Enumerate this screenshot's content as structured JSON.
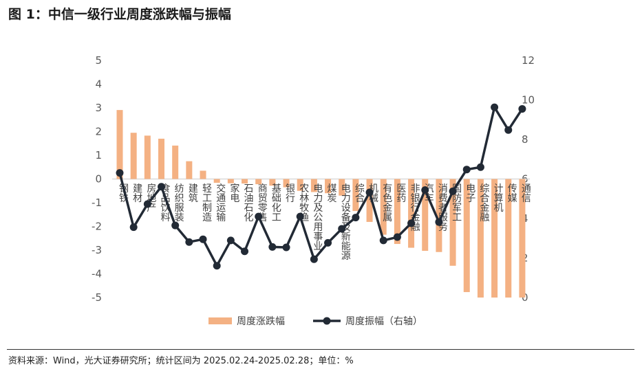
{
  "title": "图 1：中信一级行业周度涨跌幅与振幅",
  "source": "资料来源：Wind，光大证券研究所；统计区间为 2025.02.24-2025.02.28；单位：%",
  "chart_data": {
    "type": "bar+line",
    "categories": [
      "钢铁",
      "建材",
      "房地产",
      "食品饮料",
      "纺织服装",
      "建筑",
      "轻工制造",
      "交通运输",
      "家电",
      "石油石化",
      "商贸零售",
      "基础化工",
      "银行",
      "农林牧渔",
      "电力及公用事业",
      "煤炭",
      "电力设备及新能源",
      "综合",
      "机械",
      "有色金属",
      "医药",
      "非银行金融",
      "汽车",
      "消费者服务",
      "国防军工",
      "电子",
      "综合金融",
      "计算机",
      "传媒",
      "通信"
    ],
    "series": [
      {
        "name": "周度涨跌幅",
        "type": "bar",
        "axis": "left",
        "color": "#F4B183",
        "values": [
          2.91,
          1.95,
          1.83,
          1.7,
          1.41,
          0.75,
          0.35,
          -0.16,
          -0.18,
          -0.19,
          -0.22,
          -0.28,
          -0.35,
          -0.5,
          -0.55,
          -0.6,
          -0.7,
          -1.35,
          -1.81,
          -2.35,
          -2.74,
          -2.9,
          -3.03,
          -3.08,
          -3.66,
          -4.77,
          -5.0,
          -5.0,
          -5.0,
          -5.0
        ]
      },
      {
        "name": "周度振幅（右轴）",
        "type": "line",
        "axis": "right",
        "color": "#222A35",
        "values": [
          6.31,
          3.56,
          4.73,
          5.61,
          3.65,
          2.81,
          2.95,
          1.61,
          2.89,
          2.34,
          4.1,
          2.56,
          2.54,
          4.1,
          1.94,
          2.77,
          3.48,
          4.05,
          5.32,
          2.89,
          3.06,
          3.76,
          5.44,
          3.82,
          5.38,
          6.48,
          6.6,
          9.63,
          8.48,
          9.55
        ]
      }
    ],
    "left_axis": {
      "range": [
        -5,
        5
      ],
      "ticks": [
        "5",
        "4",
        "3",
        "2",
        "1",
        "0",
        "-1",
        "-2",
        "-3",
        "-4",
        "-5"
      ]
    },
    "right_axis": {
      "range": [
        0,
        12
      ],
      "ticks": [
        "12",
        "10",
        "8",
        "6",
        "4",
        "2",
        "0"
      ]
    },
    "legend_position": "bottom",
    "grid": false
  }
}
